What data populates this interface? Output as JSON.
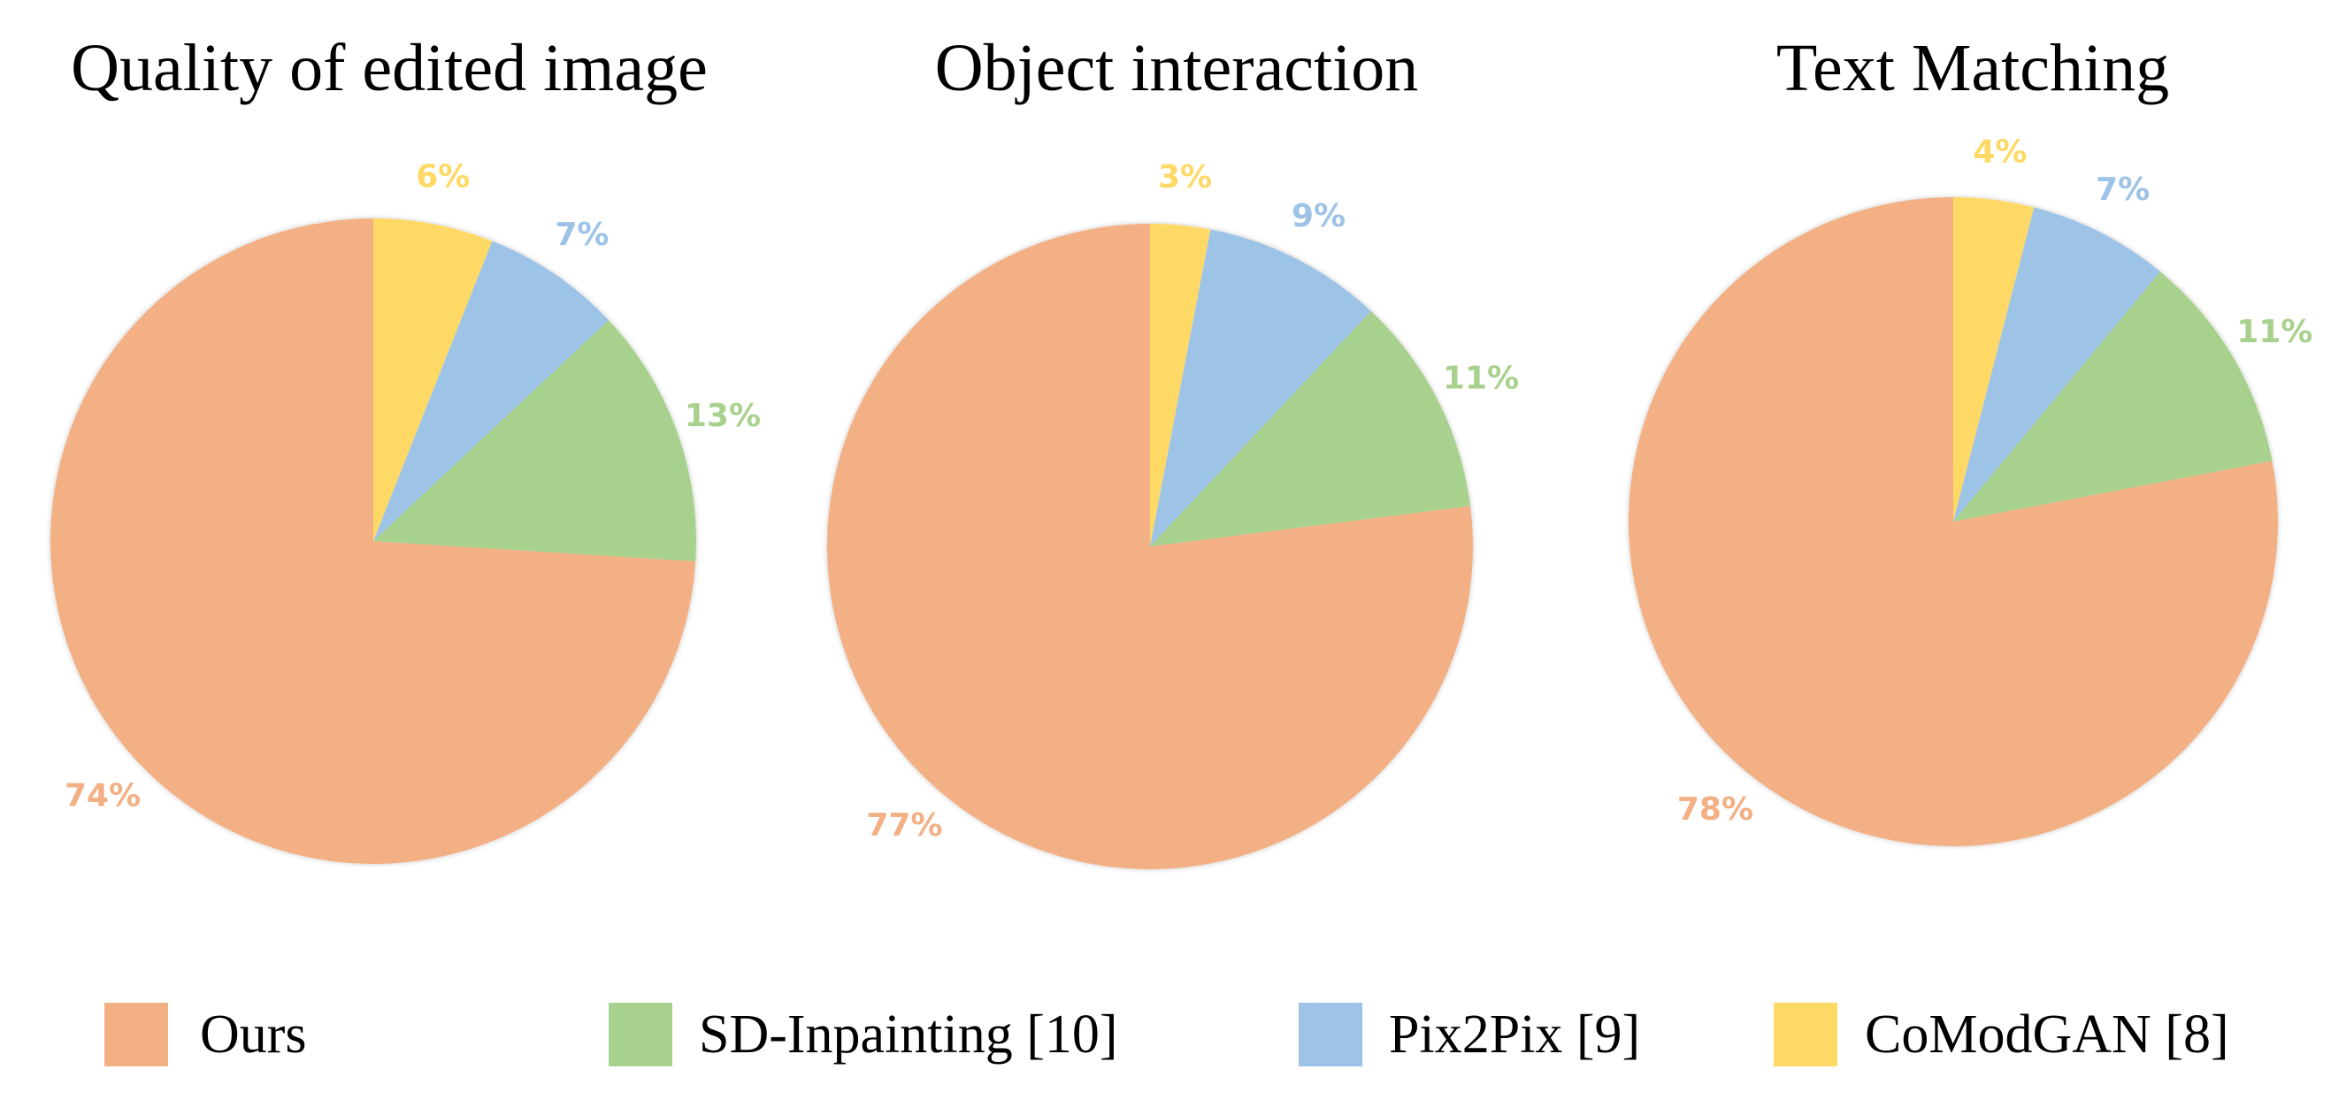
{
  "chart_data": [
    {
      "type": "pie",
      "title": "Quality of edited image",
      "series": [
        {
          "name": "CoModGAN [8]",
          "value": 6,
          "label": "6%"
        },
        {
          "name": "Pix2Pix [9]",
          "value": 7,
          "label": "7%"
        },
        {
          "name": "SD-Inpainting [10]",
          "value": 13,
          "label": "13%"
        },
        {
          "name": "Ours",
          "value": 74,
          "label": "74%"
        }
      ]
    },
    {
      "type": "pie",
      "title": "Object interaction",
      "series": [
        {
          "name": "CoModGAN [8]",
          "value": 3,
          "label": "3%"
        },
        {
          "name": "Pix2Pix [9]",
          "value": 9,
          "label": "9%"
        },
        {
          "name": "SD-Inpainting [10]",
          "value": 11,
          "label": "11%"
        },
        {
          "name": "Ours",
          "value": 77,
          "label": "77%"
        }
      ]
    },
    {
      "type": "pie",
      "title": "Text Matching",
      "series": [
        {
          "name": "CoModGAN [8]",
          "value": 4,
          "label": "4%"
        },
        {
          "name": "Pix2Pix [9]",
          "value": 7,
          "label": "7%"
        },
        {
          "name": "SD-Inpainting [10]",
          "value": 11,
          "label": "11%"
        },
        {
          "name": "Ours",
          "value": 78,
          "label": "78%"
        }
      ]
    }
  ],
  "legend": {
    "placement": "bottom",
    "items": [
      {
        "name": "Ours",
        "color": "#F2B084"
      },
      {
        "name": "SD-Inpainting [10]",
        "color": "#A9D18E"
      },
      {
        "name": "Pix2Pix [9]",
        "color": "#9DC3E6"
      },
      {
        "name": "CoModGAN [8]",
        "color": "#FFD966"
      }
    ]
  },
  "colors": {
    "Ours": "#F2B084",
    "SD-Inpainting [10]": "#A9D18E",
    "Pix2Pix [9]": "#9DC3E6",
    "CoModGAN [8]": "#FFD966"
  }
}
